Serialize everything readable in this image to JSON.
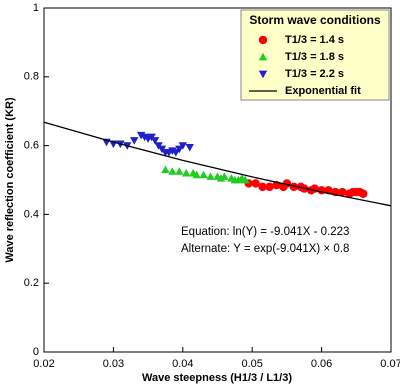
{
  "chart_data": {
    "type": "scatter",
    "x_label": "Wave steepness (H1/3 / L1/3)",
    "y_label": "Wave reflection coefficient (KR)",
    "xlim": [
      0.02,
      0.07
    ],
    "xticks": [
      0.02,
      0.03,
      0.04,
      0.05,
      0.06,
      0.07
    ],
    "ylim": [
      0,
      1
    ],
    "yticks": [
      0,
      0.2,
      0.4,
      0.6,
      0.8,
      1
    ],
    "grid": false,
    "legend_title": "Storm wave conditions",
    "legend_position": "upper right",
    "annotations": [
      "Equation: ln(Y) = -9.041X - 0.223",
      "Alternate: Y = exp(-9.041X) × 0.8"
    ],
    "series": [
      {
        "name": "T1/3 = 1.4 s",
        "color": "#ff0000",
        "marker": "circle",
        "x": [
          0.0495,
          0.0505,
          0.0515,
          0.0525,
          0.0535,
          0.0545,
          0.055,
          0.056,
          0.057,
          0.0575,
          0.0585,
          0.059,
          0.06,
          0.061,
          0.062,
          0.063,
          0.064,
          0.0645,
          0.065,
          0.0655,
          0.066
        ],
        "values": [
          0.49,
          0.49,
          0.48,
          0.48,
          0.485,
          0.48,
          0.49,
          0.48,
          0.48,
          0.475,
          0.47,
          0.475,
          0.47,
          0.47,
          0.465,
          0.465,
          0.46,
          0.465,
          0.465,
          0.465,
          0.46
        ]
      },
      {
        "name": "T1/3 = 1.8 s",
        "color": "#22cc22",
        "marker": "triangle-up",
        "x": [
          0.0375,
          0.0385,
          0.0395,
          0.0405,
          0.0415,
          0.042,
          0.043,
          0.044,
          0.045,
          0.0455,
          0.046,
          0.047,
          0.0475,
          0.048,
          0.0485,
          0.049
        ],
        "values": [
          0.53,
          0.525,
          0.525,
          0.52,
          0.52,
          0.515,
          0.515,
          0.51,
          0.51,
          0.505,
          0.51,
          0.505,
          0.5,
          0.5,
          0.505,
          0.5
        ]
      },
      {
        "name": "T1/3 = 2.2 s",
        "color": "#1f1fcc",
        "marker": "triangle-down",
        "x": [
          0.029,
          0.03,
          0.031,
          0.032,
          0.033,
          0.034,
          0.0345,
          0.035,
          0.0355,
          0.036,
          0.0365,
          0.037,
          0.0375,
          0.038,
          0.0385,
          0.039,
          0.0395,
          0.04,
          0.041
        ],
        "values": [
          0.61,
          0.605,
          0.605,
          0.6,
          0.615,
          0.63,
          0.625,
          0.62,
          0.625,
          0.615,
          0.6,
          0.59,
          0.58,
          0.58,
          0.585,
          0.58,
          0.59,
          0.6,
          0.595
        ]
      },
      {
        "name": "Exponential fit",
        "color": "#000000",
        "marker": "line",
        "x": [
          0.02,
          0.03,
          0.04,
          0.05,
          0.06,
          0.07
        ],
        "values": [
          0.668,
          0.61,
          0.557,
          0.509,
          0.465,
          0.425
        ]
      }
    ]
  }
}
